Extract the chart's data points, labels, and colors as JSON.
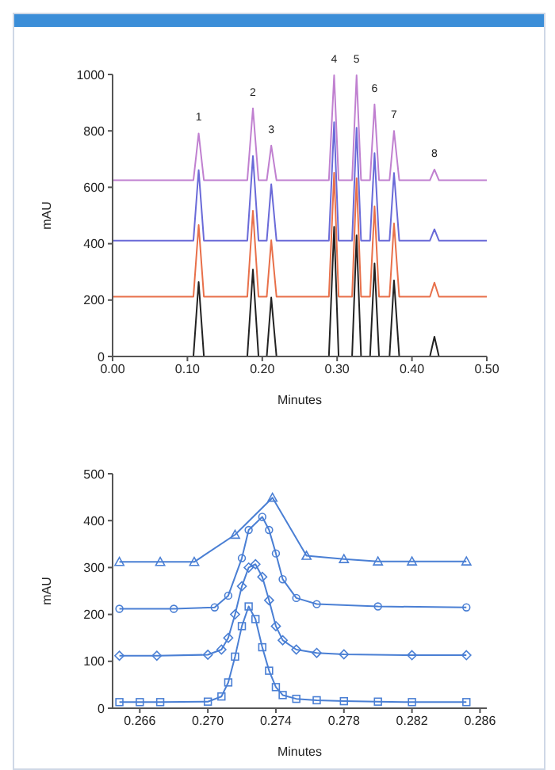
{
  "chart_data": [
    {
      "type": "line",
      "xlabel": "Minutes",
      "ylabel": "mAU",
      "x": [
        0,
        0.108,
        0.115,
        0.122,
        0.18,
        0.1875,
        0.195,
        0.206,
        0.212,
        0.219,
        0.289,
        0.296,
        0.302,
        0.32,
        0.326,
        0.332,
        0.344,
        0.35,
        0.356,
        0.37,
        0.376,
        0.383,
        0.424,
        0.43,
        0.436,
        0.5
      ],
      "series": [
        {
          "color": "#222222",
          "values": [
            0,
            0,
            264,
            0,
            0,
            308,
            0,
            0,
            209,
            0,
            0,
            460,
            0,
            0,
            430,
            0,
            0,
            330,
            0,
            0,
            270,
            0,
            0,
            70,
            0,
            0
          ]
        },
        {
          "color": "#e8704a",
          "values": [
            212,
            212,
            466,
            212,
            212,
            517,
            212,
            212,
            412,
            212,
            212,
            652,
            212,
            212,
            632,
            212,
            212,
            532,
            212,
            212,
            472,
            212,
            212,
            262,
            212,
            212
          ]
        },
        {
          "color": "#6a6ad8",
          "values": [
            411,
            411,
            661,
            411,
            411,
            711,
            411,
            411,
            611,
            411,
            411,
            831,
            411,
            411,
            811,
            411,
            411,
            721,
            411,
            411,
            651,
            411,
            411,
            451,
            411,
            411
          ]
        },
        {
          "color": "#c080d0",
          "values": [
            625,
            625,
            791,
            625,
            625,
            880,
            625,
            625,
            748,
            625,
            625,
            997,
            625,
            625,
            997,
            625,
            625,
            894,
            625,
            625,
            800,
            625,
            625,
            663,
            625,
            625
          ]
        }
      ],
      "xlim": [
        0,
        0.5
      ],
      "xticks": [
        {
          "value": 0,
          "label": "0.00"
        },
        {
          "value": 0.1,
          "label": "0.10"
        },
        {
          "value": 0.2,
          "label": "0.20"
        },
        {
          "value": 0.3,
          "label": "0.30"
        },
        {
          "value": 0.4,
          "label": "0.40"
        },
        {
          "value": 0.5,
          "label": "0.50"
        }
      ],
      "ylim": [
        0,
        1000
      ],
      "yticks": [
        0,
        200,
        400,
        600,
        800,
        1000
      ],
      "grid": false,
      "legend": false,
      "marker": "none",
      "line_style": "solid",
      "annotations": [
        {
          "text": "1",
          "x": 0.115,
          "y": 791
        },
        {
          "text": "2",
          "x": 0.1875,
          "y": 880
        },
        {
          "text": "3",
          "x": 0.212,
          "y": 748
        },
        {
          "text": "4",
          "x": 0.296,
          "y": 997
        },
        {
          "text": "5",
          "x": 0.326,
          "y": 997
        },
        {
          "text": "6",
          "x": 0.35,
          "y": 894
        },
        {
          "text": "7",
          "x": 0.376,
          "y": 800
        },
        {
          "text": "8",
          "x": 0.43,
          "y": 663
        }
      ]
    },
    {
      "type": "line",
      "xlabel": "Minutes",
      "ylabel": "mAU",
      "series": [
        {
          "color": "#4a7fd4",
          "marker": "square",
          "x": [
            0.2648,
            0.266,
            0.2672,
            0.27,
            0.2708,
            0.2712,
            0.2716,
            0.272,
            0.2724,
            0.2728,
            0.2732,
            0.2736,
            0.274,
            0.2744,
            0.2752,
            0.2764,
            0.278,
            0.28,
            0.282,
            0.2852
          ],
          "values": [
            13,
            13,
            13,
            14,
            25,
            55,
            110,
            175,
            217,
            190,
            130,
            80,
            45,
            28,
            20,
            17,
            15,
            14,
            13,
            13
          ]
        },
        {
          "color": "#4a7fd4",
          "marker": "diamond",
          "x": [
            0.2648,
            0.267,
            0.27,
            0.2708,
            0.2712,
            0.2716,
            0.272,
            0.2724,
            0.2728,
            0.2732,
            0.2736,
            0.274,
            0.2744,
            0.2752,
            0.2764,
            0.278,
            0.282,
            0.2852
          ],
          "values": [
            112,
            112,
            114,
            125,
            150,
            200,
            260,
            300,
            307,
            280,
            230,
            175,
            145,
            125,
            118,
            115,
            113,
            113
          ]
        },
        {
          "color": "#4a7fd4",
          "marker": "circle",
          "x": [
            0.2648,
            0.268,
            0.2704,
            0.2712,
            0.272,
            0.2724,
            0.2732,
            0.2736,
            0.274,
            0.2744,
            0.2752,
            0.2764,
            0.28,
            0.2852
          ],
          "values": [
            212,
            212,
            215,
            240,
            320,
            380,
            408,
            380,
            330,
            275,
            235,
            222,
            217,
            215
          ]
        },
        {
          "color": "#4a7fd4",
          "marker": "triangle",
          "x": [
            0.2648,
            0.2672,
            0.2692,
            0.2716,
            0.2738,
            0.2758,
            0.278,
            0.28,
            0.282,
            0.2852
          ],
          "values": [
            312,
            312,
            312,
            370,
            449,
            325,
            318,
            313,
            313,
            313
          ]
        }
      ],
      "xlim": [
        0.2644,
        0.2864
      ],
      "xticks": [
        {
          "value": 0.266,
          "label": "0.266"
        },
        {
          "value": 0.27,
          "label": "0.270"
        },
        {
          "value": 0.274,
          "label": "0.274"
        },
        {
          "value": 0.278,
          "label": "0.278"
        },
        {
          "value": 0.282,
          "label": "0.282"
        },
        {
          "value": 0.286,
          "label": "0.286"
        }
      ],
      "ylim": [
        0,
        500
      ],
      "yticks": [
        0,
        100,
        200,
        300,
        400,
        500
      ],
      "grid": false,
      "legend": false,
      "line_style": "solid"
    }
  ]
}
